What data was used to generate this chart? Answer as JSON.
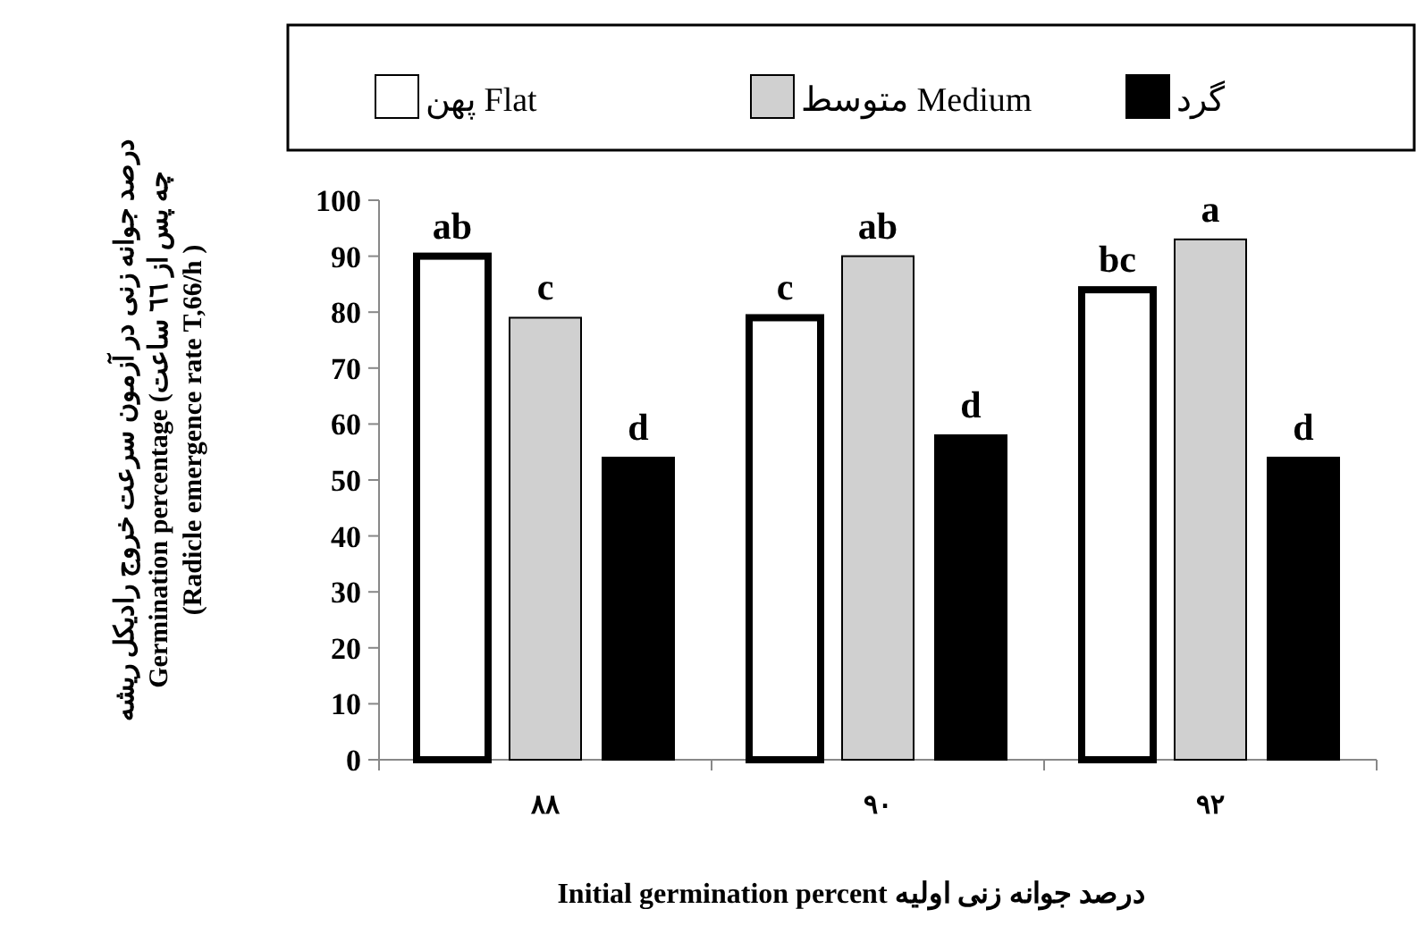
{
  "chart_data": {
    "type": "bar",
    "ylabel": "درصد جوانه زنی در آزمون سرعت خروج رادیکل ریشه چه پس از ٦٦ ساعت) Germination percentage (Radicle emergence rate T,66/h )",
    "xlabel": "درصد جوانه زنی اولیه Initial germination percent",
    "categories": [
      "٨٨",
      "٩٠",
      "٩٢"
    ],
    "series": [
      {
        "name": "پهن Flat",
        "color": "#ffffff",
        "values": [
          90,
          79,
          84
        ],
        "value_labels": [
          "ab",
          "c",
          "bc"
        ]
      },
      {
        "name": "متوسط  Medium",
        "color": "#d0d0d0",
        "values": [
          79,
          90,
          93
        ],
        "value_labels": [
          "c",
          "ab",
          "a"
        ]
      },
      {
        "name": "گرد",
        "color": "#000000",
        "values": [
          54,
          58,
          54
        ],
        "value_labels": [
          "d",
          "d",
          "d"
        ]
      }
    ],
    "ylim": [
      0,
      100
    ],
    "yticks": [
      0,
      10,
      20,
      30,
      40,
      50,
      60,
      70,
      80,
      90,
      100
    ],
    "legend": "top"
  }
}
